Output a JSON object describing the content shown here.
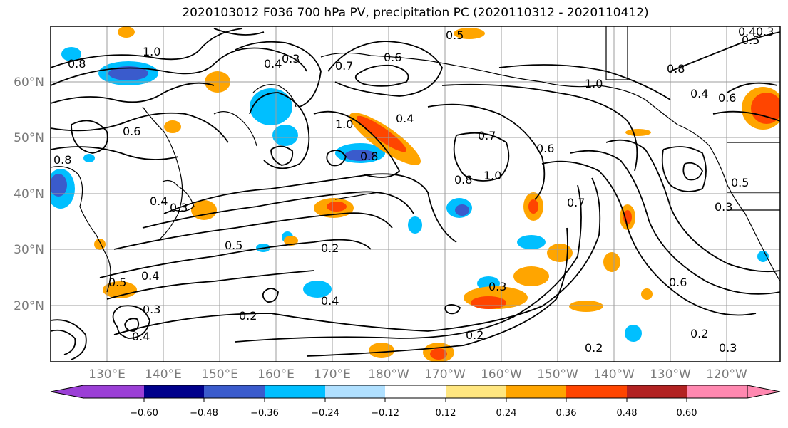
{
  "title": "2020103012 F036 700 hPa PV, precipitation PC (2020110312 - 2020110412)",
  "lat_labels": [
    "60°N",
    "50°N",
    "40°N",
    "30°N",
    "20°N"
  ],
  "lon_labels": [
    "130°E",
    "140°E",
    "150°E",
    "160°E",
    "170°E",
    "180°W",
    "170°W",
    "160°W",
    "150°W",
    "140°W",
    "130°W",
    "120°W"
  ],
  "colorbar": {
    "tick_labels": [
      "−0.60",
      "−0.48",
      "−0.36",
      "−0.24",
      "−0.12",
      "0.12",
      "0.24",
      "0.36",
      "0.48",
      "0.60"
    ],
    "colors": [
      "#9b3fd6",
      "#00008b",
      "#3a5bcc",
      "#00bfff",
      "#b0e0ff",
      "#ffffff",
      "#ffe680",
      "#ffa500",
      "#ff4500",
      "#b22222",
      "#ff88b0"
    ]
  },
  "contour_labels": [
    "1.0",
    "0.8",
    "0.6",
    "0.8",
    "0.5",
    "0.3",
    "0.4",
    "0.7",
    "0.6",
    "0.5",
    "0.4",
    "0.3",
    "1.0",
    "0.8",
    "1.0",
    "0.4",
    "0.8",
    "0.7",
    "0.6",
    "0.8",
    "1.0",
    "0.4",
    "0.6",
    "0.5",
    "0.4",
    "0.3",
    "0.5",
    "0.2",
    "0.3",
    "0.4",
    "0.5",
    "0.4",
    "0.3",
    "0.2",
    "0.4",
    "0.2",
    "0.6",
    "0.2",
    "0.2",
    "0.3",
    "0.7",
    "0.3"
  ],
  "shading_colors": {
    "pos_light": "#ffa500",
    "pos_mid": "#ff4500",
    "pos_dark": "#b22222",
    "neg_light": "#00bfff",
    "neg_mid": "#3a5bcc",
    "neg_pale": "#b0e0ff"
  }
}
